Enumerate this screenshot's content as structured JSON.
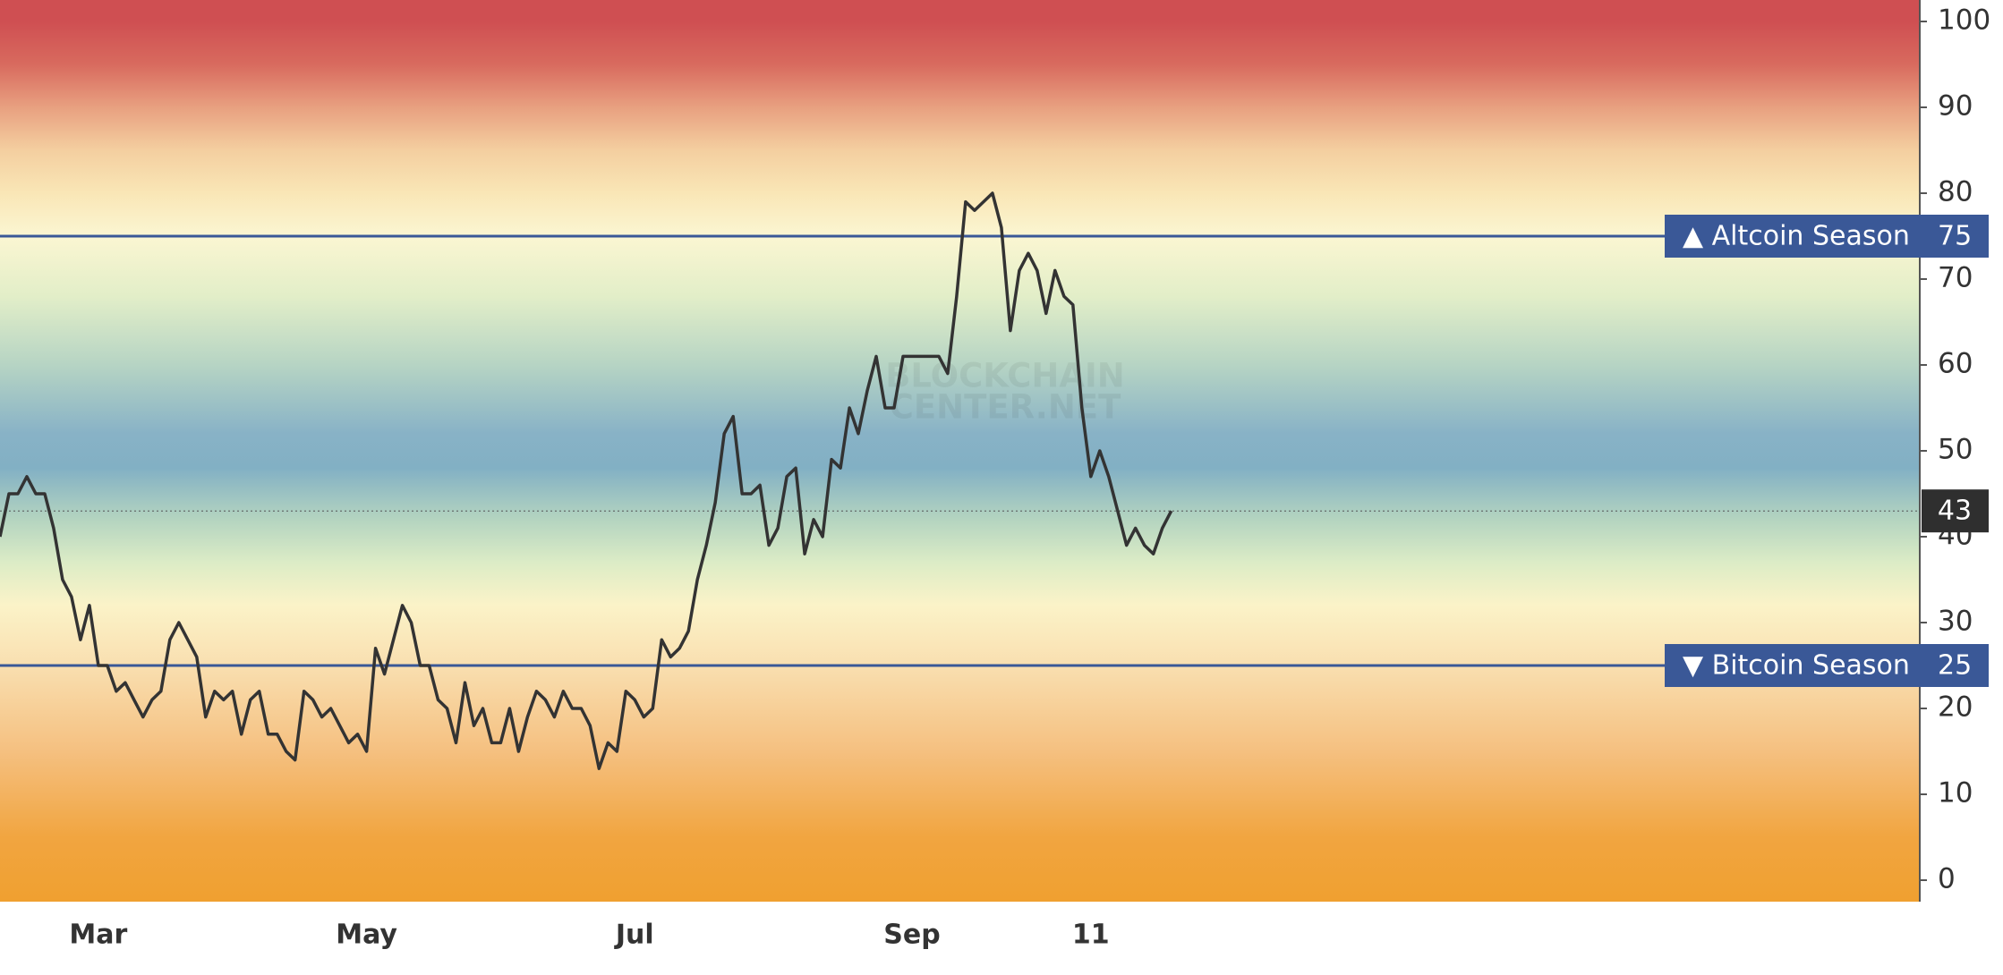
{
  "chart_data": {
    "type": "line",
    "categories": [
      null,
      null,
      null,
      null,
      null,
      null,
      null,
      null,
      null,
      null,
      null,
      "Mar",
      null,
      null,
      null,
      null,
      null,
      null,
      null,
      null,
      null,
      null,
      null,
      null,
      null,
      null,
      null,
      null,
      null,
      null,
      null,
      null,
      null,
      null,
      null,
      null,
      null,
      null,
      null,
      null,
      null,
      "May",
      null,
      null,
      null,
      null,
      null,
      null,
      null,
      null,
      null,
      null,
      null,
      null,
      null,
      null,
      null,
      null,
      null,
      null,
      null,
      null,
      null,
      null,
      null,
      null,
      null,
      null,
      null,
      null,
      null,
      "Jul",
      null,
      null,
      null,
      null,
      null,
      null,
      null,
      null,
      null,
      null,
      null,
      null,
      null,
      null,
      null,
      null,
      null,
      null,
      null,
      null,
      null,
      null,
      null,
      null,
      null,
      null,
      null,
      null,
      null,
      null,
      "Sep",
      null,
      null,
      null,
      null,
      null,
      null,
      null,
      null,
      null,
      null,
      null,
      null,
      null,
      null,
      null,
      null,
      null,
      null,
      null,
      "11",
      null,
      null,
      null,
      null,
      null,
      null,
      null,
      null,
      null
    ],
    "values": [
      40,
      45,
      45,
      47,
      45,
      45,
      41,
      35,
      33,
      28,
      32,
      25,
      25,
      22,
      23,
      21,
      19,
      21,
      22,
      28,
      30,
      28,
      26,
      19,
      22,
      21,
      22,
      17,
      21,
      22,
      17,
      17,
      15,
      14,
      22,
      21,
      19,
      20,
      18,
      16,
      17,
      15,
      27,
      24,
      28,
      32,
      30,
      25,
      25,
      21,
      20,
      16,
      23,
      18,
      20,
      16,
      16,
      20,
      15,
      19,
      22,
      21,
      19,
      22,
      20,
      20,
      18,
      13,
      16,
      15,
      22,
      21,
      19,
      20,
      28,
      26,
      27,
      29,
      35,
      39,
      44,
      52,
      54,
      45,
      45,
      46,
      39,
      41,
      47,
      48,
      38,
      42,
      40,
      49,
      48,
      55,
      52,
      57,
      61,
      55,
      55,
      61,
      61,
      61,
      61,
      61,
      59,
      68,
      79,
      78,
      79,
      80,
      76,
      64,
      71,
      73,
      71,
      66,
      71,
      68,
      67,
      55,
      47,
      50,
      47,
      43,
      39,
      41,
      39,
      38,
      41,
      43
    ],
    "color": "#333333",
    "ylim": [
      -2.5,
      102.5
    ],
    "yticks": [
      0,
      10,
      20,
      30,
      40,
      50,
      60,
      70,
      80,
      90,
      100
    ],
    "levels": [
      {
        "label": "▲ Altcoin Season",
        "value": 75
      },
      {
        "label": "▼ Bitcoin Season",
        "value": 25
      }
    ],
    "level_color": "#3a5897",
    "watermark": [
      "BLOCKCHAIN",
      "CENTER.NET"
    ]
  }
}
